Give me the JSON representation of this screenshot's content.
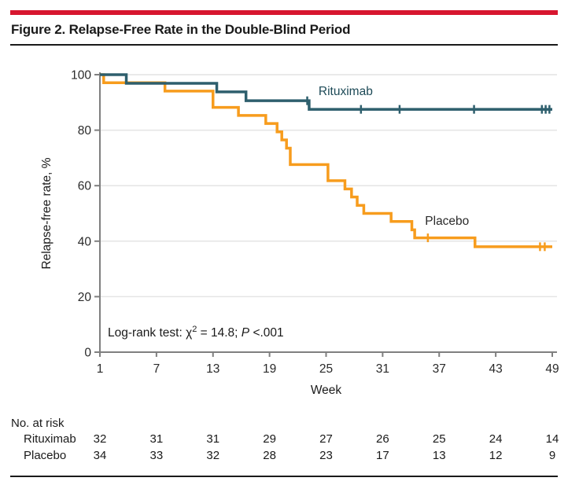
{
  "figure": {
    "title": "Figure 2. Relapse-Free Rate in the Double-Blind Period"
  },
  "annotation": {
    "prefix": "Log-rank test: χ",
    "sup": "2",
    "mid": " = 14.8; ",
    "italic": "P",
    "suffix": " <.001"
  },
  "colors": {
    "accent_bar": "#D7162F",
    "rituximab": "#2E5F6D",
    "rituximab_label": "#1D4A57",
    "placebo": "#F79C1D",
    "axis": "#7F7F7F",
    "grid": "#E4E4E4",
    "text": "#1A1A1A"
  },
  "chart_data": {
    "type": "line",
    "subtype": "kaplan-meier-step",
    "title": "",
    "xlabel": "Week",
    "ylabel": "Relapse-free rate, %",
    "xlim": [
      1,
      49
    ],
    "xticks": [
      1,
      7,
      13,
      19,
      25,
      31,
      37,
      43,
      49
    ],
    "ylim": [
      0,
      100
    ],
    "yticks": [
      0,
      20,
      40,
      60,
      80,
      100
    ],
    "grid": true,
    "legend_position": "inline-labels",
    "series": [
      {
        "name": "Rituximab",
        "color": "#2E5F6D",
        "label_pos": {
          "week": 24.2,
          "rate": 92.6
        },
        "label_anchor": "start",
        "steps": [
          [
            1,
            100
          ],
          [
            3.8,
            96.9
          ],
          [
            13.4,
            93.8
          ],
          [
            16.5,
            90.6
          ],
          [
            23.2,
            87.5
          ],
          [
            49,
            87.5
          ]
        ],
        "censor_ticks": [
          [
            23.0,
            90.6
          ],
          [
            28.7,
            87.5
          ],
          [
            32.8,
            87.5
          ],
          [
            40.7,
            87.5
          ],
          [
            47.9,
            87.5
          ],
          [
            48.3,
            87.5
          ],
          [
            48.7,
            87.5
          ]
        ]
      },
      {
        "name": "Placebo",
        "color": "#F79C1D",
        "label_pos": {
          "week": 35.5,
          "rate": 45.9
        },
        "label_anchor": "start",
        "steps": [
          [
            1,
            100
          ],
          [
            1.4,
            97.1
          ],
          [
            7.9,
            94.1
          ],
          [
            13.0,
            88.2
          ],
          [
            15.7,
            85.3
          ],
          [
            18.6,
            82.4
          ],
          [
            19.8,
            79.4
          ],
          [
            20.3,
            76.5
          ],
          [
            20.8,
            73.5
          ],
          [
            21.2,
            67.6
          ],
          [
            25.2,
            61.8
          ],
          [
            27.0,
            58.8
          ],
          [
            27.7,
            55.9
          ],
          [
            28.3,
            52.9
          ],
          [
            29.0,
            50.0
          ],
          [
            31.9,
            47.1
          ],
          [
            34.1,
            44.1
          ],
          [
            34.4,
            41.2
          ],
          [
            40.8,
            38.0
          ],
          [
            49,
            38.0
          ]
        ],
        "censor_ticks": [
          [
            35.8,
            41.2
          ],
          [
            47.7,
            38.0
          ],
          [
            48.2,
            38.0
          ]
        ]
      }
    ],
    "at_risk": {
      "header": "No. at risk",
      "weeks": [
        1,
        7,
        13,
        19,
        25,
        31,
        37,
        43,
        49
      ],
      "rows": [
        {
          "name": "Rituximab",
          "counts": [
            32,
            31,
            31,
            29,
            27,
            26,
            25,
            24,
            14
          ]
        },
        {
          "name": "Placebo",
          "counts": [
            34,
            33,
            32,
            28,
            23,
            17,
            13,
            12,
            9
          ]
        }
      ]
    }
  }
}
